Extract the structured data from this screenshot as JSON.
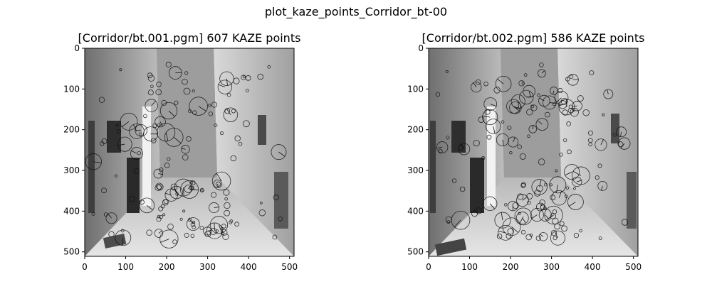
{
  "figure": {
    "suptitle": "plot_kaze_points_Corridor_bt-00"
  },
  "chart_data": [
    {
      "type": "scatter",
      "title": "[Corridor/bt.001.pgm] 607 KAZE points",
      "xlabel": "",
      "ylabel": "",
      "xlim": [
        0,
        511
      ],
      "ylim": [
        511,
        0
      ],
      "xticks": [
        0,
        100,
        200,
        300,
        400,
        500
      ],
      "yticks": [
        0,
        100,
        200,
        300,
        400,
        500
      ],
      "grid": false,
      "image": "Corridor/bt.001.pgm",
      "keypoint_count": 607
    },
    {
      "type": "scatter",
      "title": "[Corridor/bt.002.pgm] 586 KAZE points",
      "xlabel": "",
      "ylabel": "",
      "xlim": [
        0,
        511
      ],
      "ylim": [
        511,
        0
      ],
      "xticks": [
        0,
        100,
        200,
        300,
        400,
        500
      ],
      "yticks": [
        0,
        100,
        200,
        300,
        400,
        500
      ],
      "grid": false,
      "image": "Corridor/bt.002.pgm",
      "keypoint_count": 586
    }
  ]
}
